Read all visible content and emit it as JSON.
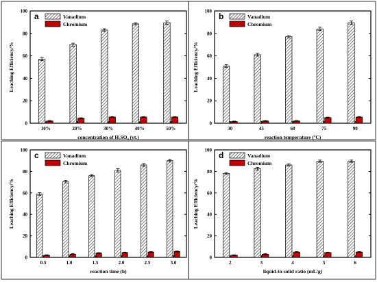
{
  "chart_data": [
    {
      "panel": "a",
      "type": "bar",
      "xlabel": "concentration of H₂SO₄ (vt.)",
      "ylabel": "Leaching Efficiency/%",
      "ylim": [
        0,
        100
      ],
      "yticks": [
        0,
        20,
        40,
        60,
        80,
        100
      ],
      "categories": [
        "10%",
        "20%",
        "30%",
        "40%",
        "50%"
      ],
      "series": [
        {
          "name": "Vanadium",
          "values": [
            57,
            70,
            83,
            88.5,
            89.5
          ],
          "errors": [
            1.2,
            1.3,
            1.1,
            1.0,
            1.5
          ]
        },
        {
          "name": "Chromium",
          "values": [
            2,
            4.5,
            5.5,
            5.5,
            5.5
          ],
          "errors": [
            0.4,
            0.4,
            0.4,
            0.4,
            0.4
          ]
        }
      ],
      "legend": "top-left"
    },
    {
      "panel": "b",
      "type": "bar",
      "xlabel": "reaction temperature (ºC)",
      "ylabel": "Leaching Efficiency/%",
      "ylim": [
        0,
        100
      ],
      "yticks": [
        0,
        20,
        40,
        60,
        80,
        100
      ],
      "categories": [
        "30",
        "45",
        "60",
        "75",
        "90"
      ],
      "series": [
        {
          "name": "Vanadium",
          "values": [
            51,
            61,
            77,
            84,
            89.5
          ],
          "errors": [
            1.2,
            1.2,
            1.0,
            1.5,
            1.5
          ]
        },
        {
          "name": "Chromium",
          "values": [
            1.5,
            2,
            2,
            5,
            5.5
          ],
          "errors": [
            0.4,
            0.4,
            0.4,
            0.4,
            0.4
          ]
        }
      ],
      "legend": "top-left"
    },
    {
      "panel": "c",
      "type": "bar",
      "xlabel": "reaction time (h)",
      "ylabel": "Leaching Efficiency/%",
      "ylim": [
        0,
        100
      ],
      "yticks": [
        0,
        20,
        40,
        60,
        80,
        100
      ],
      "categories": [
        "0.5",
        "1.0",
        "1.5",
        "2.0",
        "2.5",
        "3.0"
      ],
      "series": [
        {
          "name": "Vanadium",
          "values": [
            59,
            70.5,
            76,
            81,
            86,
            90
          ],
          "errors": [
            1.2,
            1.2,
            1.0,
            1.5,
            1.3,
            1.3
          ]
        },
        {
          "name": "Chromium",
          "values": [
            2,
            3,
            4,
            4.5,
            5,
            5.5
          ],
          "errors": [
            0.4,
            0.4,
            0.4,
            0.4,
            0.4,
            0.4
          ]
        }
      ],
      "legend": "top-left"
    },
    {
      "panel": "d",
      "type": "bar",
      "xlabel": "liquid-to-solid ratio (mL/g)",
      "ylabel": "Leaching Efficiency/%",
      "ylim": [
        0,
        100
      ],
      "yticks": [
        0,
        20,
        40,
        60,
        80,
        100
      ],
      "categories": [
        "2",
        "3",
        "4",
        "5",
        "6"
      ],
      "series": [
        {
          "name": "Vanadium",
          "values": [
            78,
            82.5,
            86,
            89.5,
            89.5
          ],
          "errors": [
            1.0,
            1.2,
            1.0,
            1.0,
            1.0
          ]
        },
        {
          "name": "Chromium",
          "values": [
            2,
            3,
            5,
            4.5,
            5
          ],
          "errors": [
            0.4,
            0.4,
            0.4,
            0.4,
            0.4
          ]
        }
      ],
      "legend": "top-left"
    }
  ],
  "colors": {
    "vanadium_fill": "#ffffff",
    "vanadium_hatch": "#333333",
    "chromium_fill": "#d40000",
    "chromium_hatch": "#5a0000",
    "axis": "#000000"
  }
}
